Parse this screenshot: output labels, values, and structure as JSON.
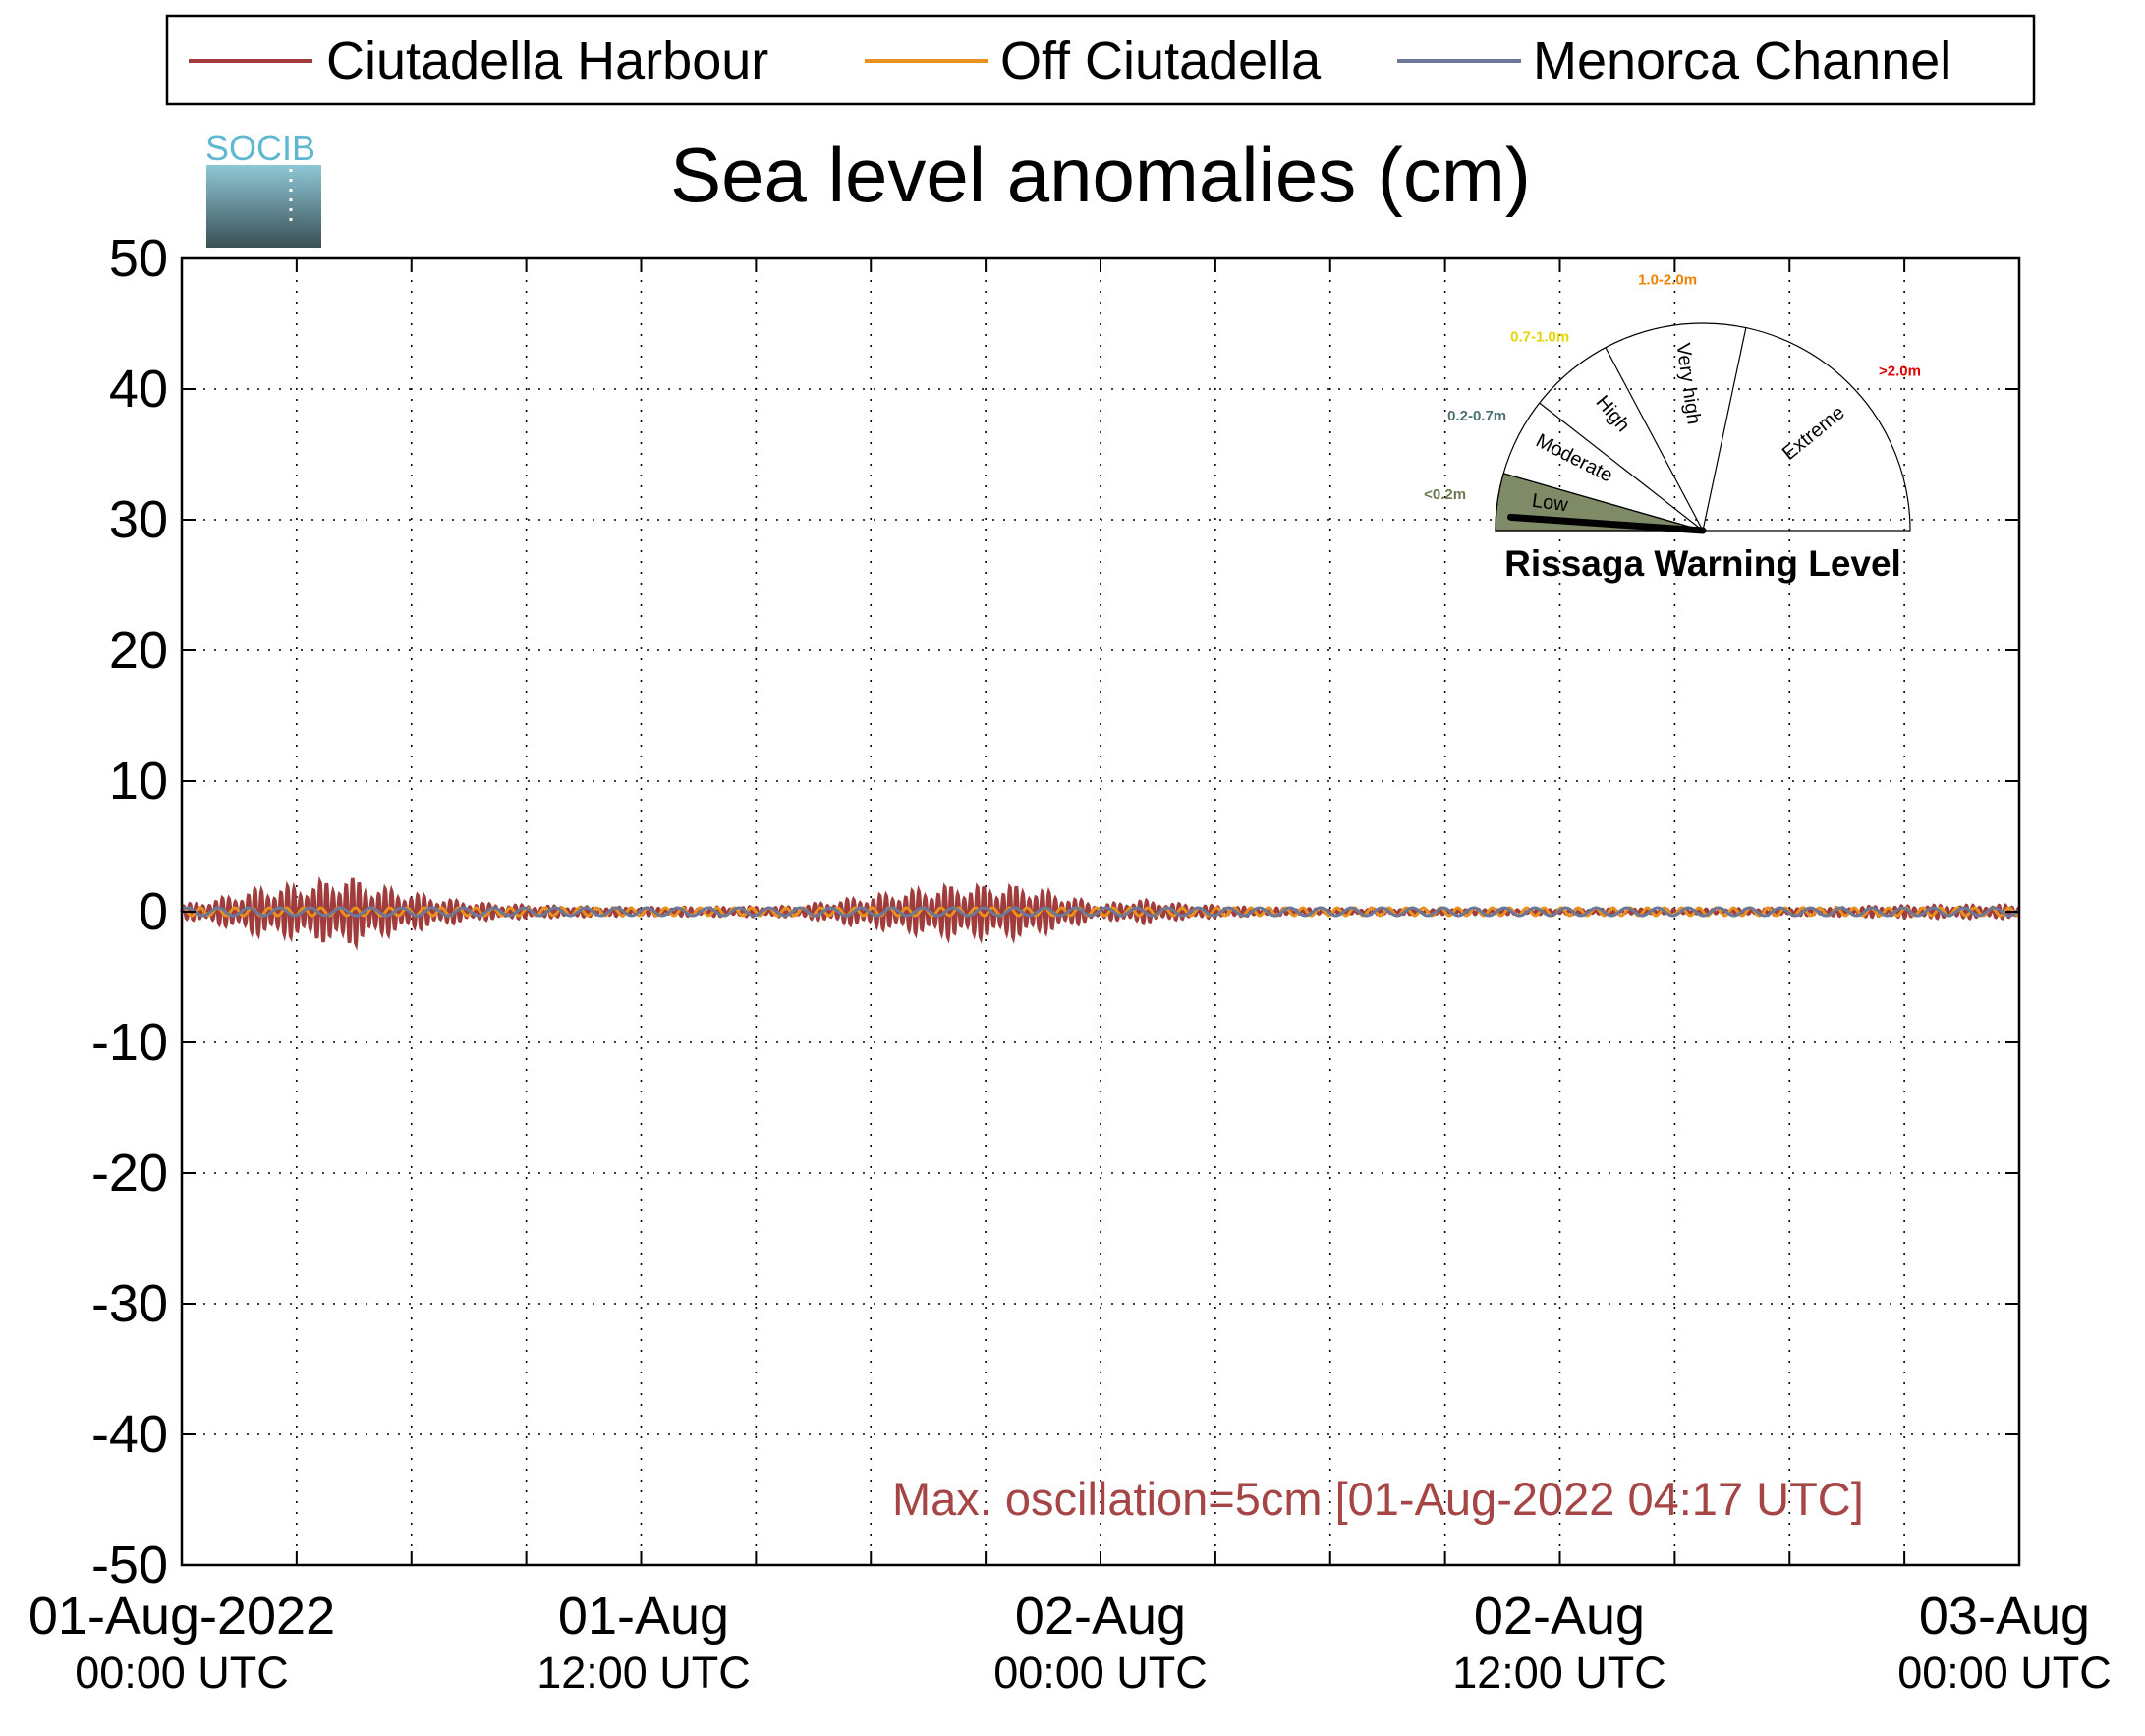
{
  "chart_data": {
    "type": "line",
    "title": "Sea level anomalies (cm)",
    "ylim": [
      -50,
      50
    ],
    "yticks": [
      50,
      40,
      30,
      20,
      10,
      0,
      -10,
      -20,
      -30,
      -40,
      -50
    ],
    "xlim": [
      "2022-08-01T00:00",
      "2022-08-03T00:00"
    ],
    "xticks_major": [
      {
        "line1": "01-Aug-2022",
        "line2": "00:00 UTC"
      },
      {
        "line1": "01-Aug",
        "line2": "12:00 UTC"
      },
      {
        "line1": "02-Aug",
        "line2": "00:00 UTC"
      },
      {
        "line1": "02-Aug",
        "line2": "12:00 UTC"
      },
      {
        "line1": "03-Aug",
        "line2": "00:00 UTC"
      }
    ],
    "grid": true,
    "legend_position": "top",
    "annotation": "Max. oscillation=5cm [01-Aug-2022 04:17 UTC]",
    "series": [
      {
        "name": "Ciutadella Harbour",
        "color": "#a03c3c",
        "envelope_hours": [
          0,
          1,
          2,
          3,
          4,
          4.3,
          5,
          6,
          7,
          8,
          10,
          12,
          16,
          18,
          20,
          22,
          24,
          25,
          26,
          28,
          30,
          36,
          40,
          43,
          44,
          46,
          48
        ],
        "envelope_amplitude_cm": [
          0.5,
          1.0,
          1.8,
          2.0,
          2.5,
          2.8,
          2.0,
          1.4,
          0.9,
          0.6,
          0.4,
          0.3,
          0.4,
          1.2,
          2.0,
          2.0,
          0.5,
          0.9,
          0.6,
          0.3,
          0.2,
          0.2,
          0.2,
          0.3,
          0.4,
          0.5,
          0.5
        ]
      },
      {
        "name": "Off Ciutadella",
        "color": "#e8911e",
        "approx_amplitude_cm": 0.3
      },
      {
        "name": "Menorca Channel",
        "color": "#6b7899",
        "approx_amplitude_cm": 0.3
      }
    ]
  },
  "legend": {
    "items": [
      {
        "label": "Ciutadella Harbour",
        "color": "#a03c3c"
      },
      {
        "label": "Off Ciutadella",
        "color": "#e8911e"
      },
      {
        "label": "Menorca Channel",
        "color": "#6b7899"
      }
    ]
  },
  "logo": {
    "text": "SOCIB"
  },
  "gauge": {
    "title": "Rissaga Warning Level",
    "current_level": "Low",
    "sectors": [
      {
        "label": "Low",
        "range": "<0.2m",
        "range_color": "#6b7a4f"
      },
      {
        "label": "Moderate",
        "range": "0.2-0.7m",
        "range_color": "#4d7070"
      },
      {
        "label": "High",
        "range": "0.7-1.0m",
        "range_color": "#e6d600"
      },
      {
        "label": "Very high",
        "range": "1.0-2.0m",
        "range_color": "#f08000"
      },
      {
        "label": "Extreme",
        "range": ">2.0m",
        "range_color": "#e00000"
      }
    ],
    "active_fill": "#7f8a66"
  }
}
